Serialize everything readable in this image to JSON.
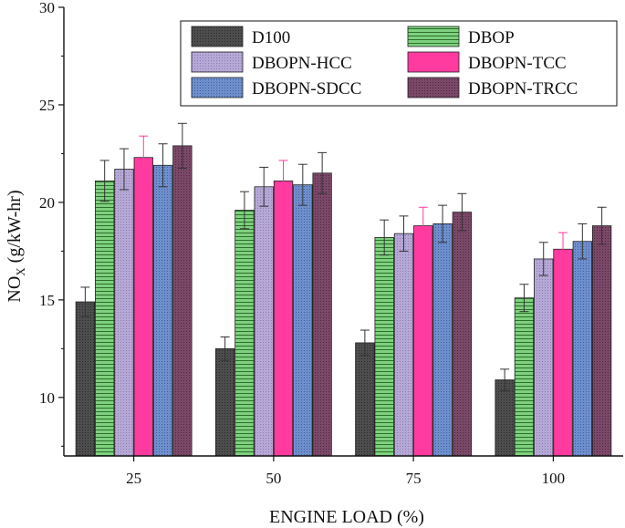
{
  "chart_data": {
    "type": "bar",
    "title": "",
    "xlabel": "ENGINE LOAD (%)",
    "ylabel": {
      "main": "NO",
      "sub": "X",
      "unit": " (g/kW-hr)"
    },
    "ylim": [
      7,
      30
    ],
    "yticks": [
      10,
      15,
      20,
      25,
      30
    ],
    "categories": [
      "25",
      "50",
      "75",
      "100"
    ],
    "legend_position": "top-right",
    "series": [
      {
        "name": "D100",
        "color": "#4d4d4d",
        "pattern": "dots",
        "values": [
          14.9,
          12.5,
          12.8,
          10.9
        ],
        "errors": [
          0.75,
          0.6,
          0.65,
          0.55
        ]
      },
      {
        "name": "DBOP",
        "color": "#7ed17e",
        "pattern": "hlines",
        "values": [
          21.1,
          19.6,
          18.2,
          15.1
        ],
        "errors": [
          1.05,
          0.95,
          0.9,
          0.7
        ]
      },
      {
        "name": "DBOPN-HCC",
        "color": "#b6a8d6",
        "pattern": "dots",
        "values": [
          21.7,
          20.8,
          18.4,
          17.1
        ],
        "errors": [
          1.05,
          1.0,
          0.9,
          0.85
        ]
      },
      {
        "name": "DBOPN-TCC",
        "color": "#ff3ba0",
        "pattern": "none",
        "values": [
          22.3,
          21.1,
          18.8,
          17.6
        ],
        "errors": [
          1.1,
          1.05,
          0.95,
          0.85
        ]
      },
      {
        "name": "DBOPN-SDCC",
        "color": "#6e8fcc",
        "pattern": "dots",
        "values": [
          21.9,
          20.9,
          18.9,
          18.0
        ],
        "errors": [
          1.1,
          1.05,
          0.95,
          0.9
        ]
      },
      {
        "name": "DBOPN-TRCC",
        "color": "#7b4868",
        "pattern": "dots",
        "values": [
          22.9,
          21.5,
          19.5,
          18.8
        ],
        "errors": [
          1.15,
          1.05,
          0.95,
          0.95
        ]
      }
    ]
  }
}
